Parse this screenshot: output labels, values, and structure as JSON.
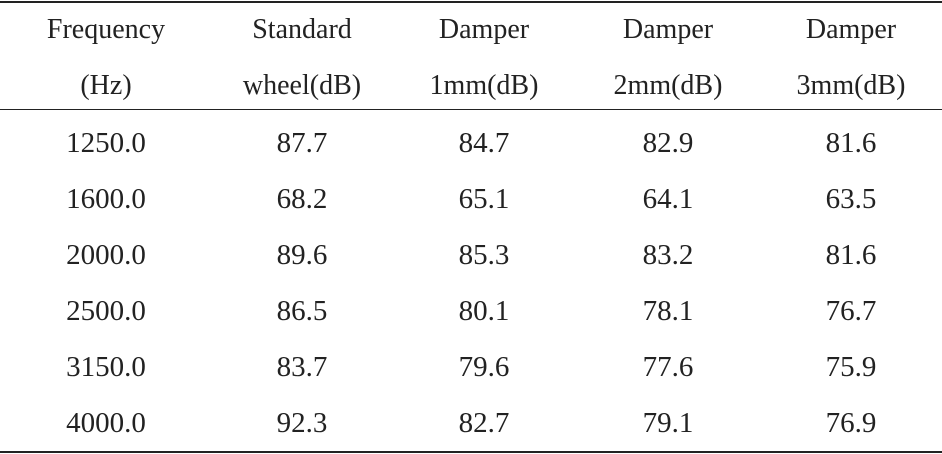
{
  "table": {
    "header_line1": [
      "Frequency",
      "Standard",
      "Damper",
      "Damper",
      "Damper"
    ],
    "header_line2": [
      "(Hz)",
      "wheel(dB)",
      "1mm(dB)",
      "2mm(dB)",
      "3mm(dB)"
    ],
    "rows": [
      [
        "1250.0",
        "87.7",
        "84.7",
        "82.9",
        "81.6"
      ],
      [
        "1600.0",
        "68.2",
        "65.1",
        "64.1",
        "63.5"
      ],
      [
        "2000.0",
        "89.6",
        "85.3",
        "83.2",
        "81.6"
      ],
      [
        "2500.0",
        "86.5",
        "80.1",
        "78.1",
        "76.7"
      ],
      [
        "3150.0",
        "83.7",
        "79.6",
        "77.6",
        "75.9"
      ],
      [
        "4000.0",
        "92.3",
        "82.7",
        "79.1",
        "76.9"
      ]
    ]
  }
}
